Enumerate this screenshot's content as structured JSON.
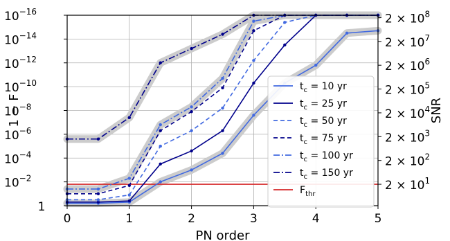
{
  "chart_data": {
    "type": "line",
    "xlabel": "PN order",
    "ylabel_left": "1 − F",
    "ylabel_right": "SNR",
    "xlim": [
      0,
      5
    ],
    "ylim_log10_one_minus_F": [
      0,
      -16
    ],
    "yscale": "log (inverted)",
    "grid": true,
    "legend_position": "center-right",
    "x_ticks": [
      "0",
      "1",
      "2",
      "3",
      "4",
      "5"
    ],
    "left_ticks": [
      {
        "base": "1",
        "exp": ""
      },
      {
        "base": "10",
        "exp": "−2"
      },
      {
        "base": "10",
        "exp": "−4"
      },
      {
        "base": "10",
        "exp": "−6"
      },
      {
        "base": "10",
        "exp": "−8"
      },
      {
        "base": "10",
        "exp": "−10"
      },
      {
        "base": "10",
        "exp": "−12"
      },
      {
        "base": "10",
        "exp": "−14"
      },
      {
        "base": "10",
        "exp": "−16"
      }
    ],
    "right_ticks": [
      {
        "base": "2 × 10",
        "exp": "1"
      },
      {
        "base": "2 × 10",
        "exp": "2"
      },
      {
        "base": "2 × 10",
        "exp": "3"
      },
      {
        "base": "2 × 10",
        "exp": "4"
      },
      {
        "base": "2 × 10",
        "exp": "5"
      },
      {
        "base": "2 × 10",
        "exp": "6"
      },
      {
        "base": "2 × 10",
        "exp": "7"
      },
      {
        "base": "2 × 10",
        "exp": "8"
      }
    ],
    "right_tick_positions_log10": [
      -1.8,
      -3.8,
      -5.8,
      -7.8,
      -9.8,
      -11.8,
      -13.8,
      -15.8
    ],
    "threshold": {
      "label": "F",
      "sub": "thr",
      "value_log10": -1.8,
      "color": "#d62728"
    },
    "x": [
      0,
      0.5,
      1,
      1.5,
      2,
      2.5,
      3,
      3.5,
      4,
      4.5,
      5
    ],
    "series": [
      {
        "label_pre": "t",
        "label_sub": "c",
        "label_post": " = 10 yr",
        "style": "solid",
        "color": "#4169e1",
        "values_log10": [
          -0.2,
          -0.2,
          -0.3,
          -2.0,
          -3.0,
          -4.4,
          -7.6,
          -10.3,
          -11.8,
          -14.5,
          -14.7
        ]
      },
      {
        "label_pre": "t",
        "label_sub": "c",
        "label_post": " = 25 yr",
        "style": "solid",
        "color": "#00008b",
        "values_log10": [
          -0.3,
          -0.3,
          -0.4,
          -3.5,
          -4.6,
          -6.3,
          -10.3,
          -13.5,
          -16.0,
          -16.0,
          -16.0
        ]
      },
      {
        "label_pre": "t",
        "label_sub": "c",
        "label_post": " = 50 yr",
        "style": "dashed",
        "color": "#4169e1",
        "values_log10": [
          -0.5,
          -0.5,
          -0.9,
          -5.0,
          -6.3,
          -8.2,
          -12.2,
          -15.4,
          -16.0,
          -16.0,
          -16.0
        ]
      },
      {
        "label_pre": "t",
        "label_sub": "c",
        "label_post": " = 75 yr",
        "style": "dashed",
        "color": "#00008b",
        "values_log10": [
          -1.0,
          -1.0,
          -1.7,
          -6.3,
          -7.9,
          -9.9,
          -14.7,
          -16.0,
          -16.0,
          -16.0,
          -16.0
        ]
      },
      {
        "label_pre": "t",
        "label_sub": "c",
        "label_post": " = 100 yr",
        "style": "dashdot",
        "color": "#4169e1",
        "values_log10": [
          -1.4,
          -1.4,
          -2.3,
          -6.8,
          -8.3,
          -10.7,
          -15.5,
          -16.0,
          -16.0,
          -16.0,
          -16.0
        ]
      },
      {
        "label_pre": "t",
        "label_sub": "c",
        "label_post": " = 150 yr",
        "style": "dashdot",
        "color": "#00008b",
        "values_log10": [
          -5.6,
          -5.6,
          -7.4,
          -12.0,
          -13.2,
          -14.4,
          -16.0,
          -16.0,
          -16.0,
          -16.0,
          -16.0
        ]
      }
    ],
    "band_color": "#cccccc"
  }
}
